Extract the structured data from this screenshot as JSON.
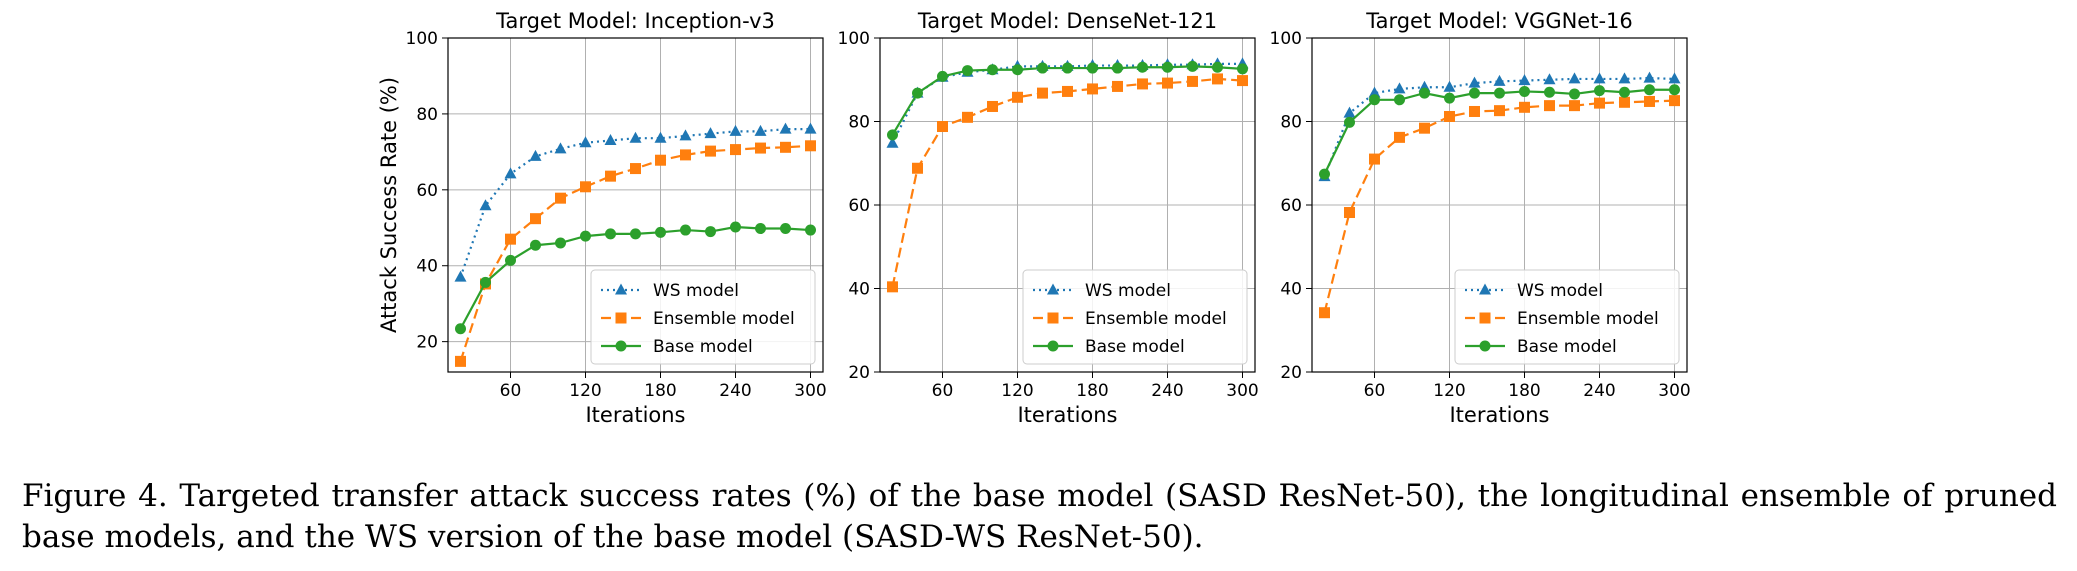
{
  "chart_data": [
    {
      "type": "line",
      "title": "Target Model: Inception-v3",
      "xlabel": "Iterations",
      "ylabel": "Attack Success Rate (%)",
      "xlim": [
        10,
        310
      ],
      "ylim": [
        12,
        100
      ],
      "xticks": [
        60,
        120,
        180,
        240,
        300
      ],
      "yticks": [
        20,
        40,
        60,
        80,
        100
      ],
      "grid": true,
      "legend_position": "lower-right",
      "x": [
        20,
        40,
        60,
        80,
        100,
        120,
        140,
        160,
        180,
        200,
        220,
        240,
        260,
        280,
        300
      ],
      "series": [
        {
          "name": "WS model",
          "color": "#1f77b4",
          "linestyle": "dotted",
          "marker": "triangle",
          "values": [
            37,
            55.8,
            64.2,
            68.8,
            70.8,
            72.4,
            73,
            73.6,
            73.6,
            74.2,
            74.8,
            75.4,
            75.4,
            76,
            76
          ]
        },
        {
          "name": "Ensemble model",
          "color": "#ff7f0e",
          "linestyle": "dashed",
          "marker": "square",
          "values": [
            14.8,
            35.2,
            47,
            52.4,
            57.8,
            60.8,
            63.6,
            65.6,
            67.8,
            69.2,
            70.2,
            70.6,
            71,
            71.2,
            71.6
          ]
        },
        {
          "name": "Base model",
          "color": "#2ca02c",
          "linestyle": "solid",
          "marker": "circle",
          "values": [
            23.4,
            35.6,
            41.4,
            45.4,
            46,
            47.8,
            48.4,
            48.4,
            48.8,
            49.4,
            49,
            50.2,
            49.8,
            49.8,
            49.4
          ]
        }
      ]
    },
    {
      "type": "line",
      "title": "Target Model: DenseNet-121",
      "xlabel": "Iterations",
      "ylabel": "",
      "xlim": [
        10,
        310
      ],
      "ylim": [
        20,
        100
      ],
      "xticks": [
        60,
        120,
        180,
        240,
        300
      ],
      "yticks": [
        20,
        40,
        60,
        80,
        100
      ],
      "grid": true,
      "legend_position": "lower-right",
      "x": [
        20,
        40,
        60,
        80,
        100,
        120,
        140,
        160,
        180,
        200,
        220,
        240,
        260,
        280,
        300
      ],
      "series": [
        {
          "name": "WS model",
          "color": "#1f77b4",
          "linestyle": "dotted",
          "marker": "triangle",
          "values": [
            74.8,
            86.8,
            90.6,
            91.8,
            92.4,
            93.2,
            93.2,
            93.2,
            93.4,
            93.4,
            93.4,
            93.6,
            93.6,
            93.8,
            93.8
          ]
        },
        {
          "name": "Ensemble model",
          "color": "#ff7f0e",
          "linestyle": "dashed",
          "marker": "square",
          "values": [
            40.4,
            68.8,
            78.8,
            81,
            83.6,
            85.8,
            86.8,
            87.2,
            87.8,
            88.4,
            89,
            89.2,
            89.6,
            90.2,
            89.8
          ]
        },
        {
          "name": "Base model",
          "color": "#2ca02c",
          "linestyle": "solid",
          "marker": "circle",
          "values": [
            76.8,
            86.8,
            90.8,
            92.2,
            92.4,
            92.4,
            92.8,
            92.8,
            92.8,
            92.8,
            93,
            93,
            93.2,
            93,
            92.6
          ]
        }
      ]
    },
    {
      "type": "line",
      "title": "Target Model: VGGNet-16",
      "xlabel": "Iterations",
      "ylabel": "",
      "xlim": [
        10,
        310
      ],
      "ylim": [
        20,
        100
      ],
      "xticks": [
        60,
        120,
        180,
        240,
        300
      ],
      "yticks": [
        20,
        40,
        60,
        80,
        100
      ],
      "grid": true,
      "legend_position": "lower-right",
      "x": [
        20,
        40,
        60,
        80,
        100,
        120,
        140,
        160,
        180,
        200,
        220,
        240,
        260,
        280,
        300
      ],
      "series": [
        {
          "name": "WS model",
          "color": "#1f77b4",
          "linestyle": "dotted",
          "marker": "triangle",
          "values": [
            66.8,
            82,
            86.8,
            87.8,
            88.2,
            88.2,
            89.2,
            89.6,
            89.8,
            90,
            90.2,
            90.2,
            90.2,
            90.4,
            90.2
          ]
        },
        {
          "name": "Ensemble model",
          "color": "#ff7f0e",
          "linestyle": "dashed",
          "marker": "square",
          "values": [
            34.2,
            58.2,
            71,
            76.2,
            78.4,
            81.2,
            82.4,
            82.6,
            83.4,
            83.8,
            83.8,
            84.4,
            84.6,
            84.8,
            85
          ]
        },
        {
          "name": "Base model",
          "color": "#2ca02c",
          "linestyle": "solid",
          "marker": "circle",
          "values": [
            67.4,
            79.8,
            85.2,
            85.2,
            86.8,
            85.6,
            86.8,
            86.8,
            87.2,
            87,
            86.6,
            87.4,
            87,
            87.6,
            87.6
          ]
        }
      ]
    }
  ],
  "caption": {
    "line1": "Figure 4.  Targeted transfer attack success rates (%) of the base model (SASD ResNet-50), the longitudinal ensemble of pruned base",
    "line2": "models, and the WS version of the base model (SASD-WS ResNet-50)."
  }
}
